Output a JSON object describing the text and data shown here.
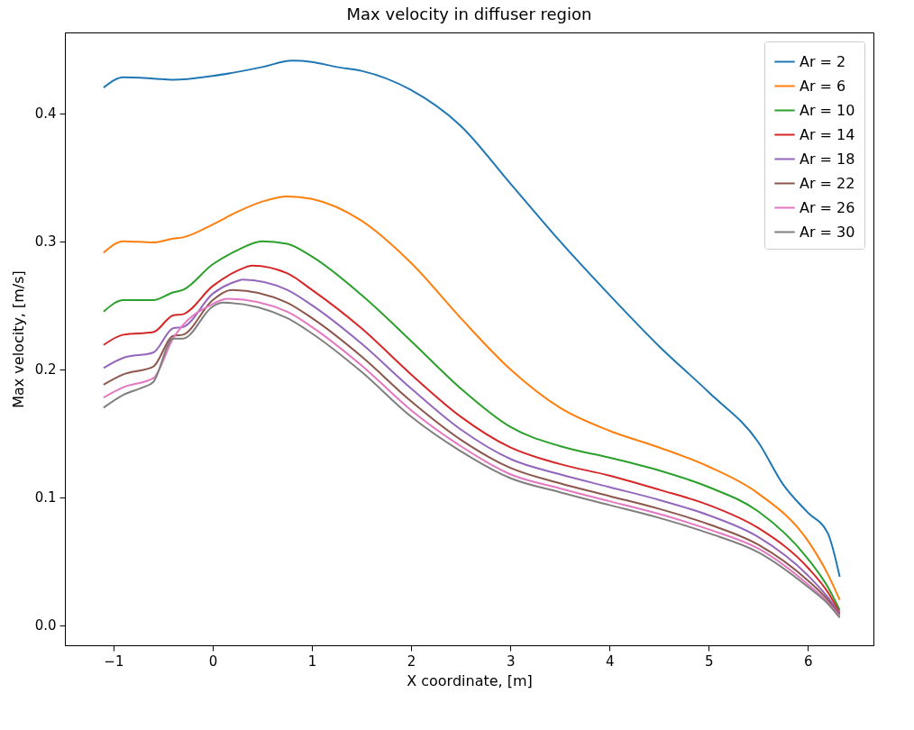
{
  "chart_data": {
    "type": "line",
    "title": "Max velocity in diffuser region",
    "xlabel": "X coordinate, [m]",
    "ylabel": "Max velocity, [m/s]",
    "xlim": [
      -1.49,
      6.66
    ],
    "ylim": [
      -0.0155,
      0.463
    ],
    "xticks": [
      -1,
      0,
      1,
      2,
      3,
      4,
      5,
      6
    ],
    "yticks": [
      {
        "value": 0,
        "label": "0.0"
      },
      {
        "value": 0.1,
        "label": "0.1"
      },
      {
        "value": 0.2,
        "label": "0.2"
      },
      {
        "value": 0.3,
        "label": "0.3"
      },
      {
        "value": 0.4,
        "label": "0.4"
      }
    ],
    "grid": false,
    "legend": "top right",
    "line_style": "solid",
    "marker": "none",
    "series": [
      {
        "name": "Ar = 2",
        "color": "#1f77b4",
        "x": [
          -1.1,
          -0.9,
          -0.6,
          -0.4,
          0,
          0.5,
          0.8,
          1,
          1.25,
          1.5,
          2,
          2.5,
          3,
          3.5,
          4,
          4.5,
          5,
          5.5,
          5.75,
          6,
          6.2,
          6.32
        ],
        "values": [
          0.42,
          0.428,
          0.427,
          0.426,
          0.429,
          0.436,
          0.441,
          0.44,
          0.436,
          0.433,
          0.418,
          0.39,
          0.345,
          0.3,
          0.258,
          0.218,
          0.182,
          0.143,
          0.11,
          0.088,
          0.072,
          0.038
        ]
      },
      {
        "name": "Ar = 6",
        "color": "#ff7f0e",
        "x": [
          -1.1,
          -0.9,
          -0.6,
          -0.4,
          -0.3,
          0,
          0.25,
          0.5,
          0.75,
          1,
          1.5,
          2,
          2.5,
          3,
          3.5,
          4,
          4.5,
          5,
          5.5,
          6,
          6.2,
          6.32
        ],
        "values": [
          0.291,
          0.3,
          0.299,
          0.302,
          0.303,
          0.313,
          0.323,
          0.331,
          0.335,
          0.333,
          0.316,
          0.283,
          0.24,
          0.2,
          0.17,
          0.152,
          0.139,
          0.124,
          0.103,
          0.066,
          0.04,
          0.02
        ]
      },
      {
        "name": "Ar = 10",
        "color": "#2ca02c",
        "x": [
          -1.1,
          -0.9,
          -0.6,
          -0.4,
          -0.3,
          0,
          0.25,
          0.5,
          0.75,
          1,
          1.5,
          2,
          2.5,
          3,
          3.5,
          4,
          4.5,
          5,
          5.5,
          6,
          6.2,
          6.32
        ],
        "values": [
          0.245,
          0.254,
          0.254,
          0.26,
          0.262,
          0.282,
          0.293,
          0.3,
          0.298,
          0.288,
          0.258,
          0.222,
          0.185,
          0.155,
          0.14,
          0.131,
          0.121,
          0.108,
          0.089,
          0.052,
          0.03,
          0.012
        ]
      },
      {
        "name": "Ar = 14",
        "color": "#d62728",
        "x": [
          -1.1,
          -0.9,
          -0.6,
          -0.4,
          -0.3,
          0,
          0.25,
          0.4,
          0.75,
          1,
          1.5,
          2,
          2.5,
          3,
          3.5,
          4,
          4.5,
          5,
          5.5,
          6,
          6.2,
          6.32
        ],
        "values": [
          0.219,
          0.227,
          0.229,
          0.242,
          0.243,
          0.265,
          0.277,
          0.281,
          0.275,
          0.262,
          0.232,
          0.196,
          0.163,
          0.139,
          0.126,
          0.117,
          0.106,
          0.094,
          0.076,
          0.045,
          0.026,
          0.01
        ]
      },
      {
        "name": "Ar = 18",
        "color": "#9467bd",
        "x": [
          -1.1,
          -0.9,
          -0.6,
          -0.4,
          -0.3,
          0,
          0.25,
          0.3,
          0.75,
          1,
          1.5,
          2,
          2.5,
          3,
          3.5,
          4,
          4.5,
          5,
          5.5,
          6,
          6.2,
          6.32
        ],
        "values": [
          0.201,
          0.209,
          0.213,
          0.232,
          0.233,
          0.259,
          0.269,
          0.27,
          0.262,
          0.25,
          0.22,
          0.185,
          0.153,
          0.13,
          0.118,
          0.108,
          0.098,
          0.086,
          0.069,
          0.039,
          0.022,
          0.009
        ]
      },
      {
        "name": "Ar = 22",
        "color": "#8c564b",
        "x": [
          -1.1,
          -0.9,
          -0.6,
          -0.4,
          -0.3,
          0,
          0.2,
          0.75,
          1,
          1.5,
          2,
          2.5,
          3,
          3.5,
          4,
          4.5,
          5,
          5.5,
          6,
          6.2,
          6.32
        ],
        "values": [
          0.188,
          0.196,
          0.202,
          0.226,
          0.227,
          0.254,
          0.262,
          0.252,
          0.24,
          0.21,
          0.175,
          0.145,
          0.123,
          0.111,
          0.101,
          0.091,
          0.079,
          0.063,
          0.035,
          0.02,
          0.008
        ]
      },
      {
        "name": "Ar = 26",
        "color": "#e377c2",
        "x": [
          -1.1,
          -0.9,
          -0.6,
          -0.4,
          0,
          0.15,
          0.75,
          1,
          1.5,
          2,
          2.5,
          3,
          3.5,
          4,
          4.5,
          5,
          5.5,
          6,
          6.2,
          6.32
        ],
        "values": [
          0.178,
          0.186,
          0.193,
          0.224,
          0.251,
          0.255,
          0.245,
          0.233,
          0.203,
          0.168,
          0.14,
          0.118,
          0.107,
          0.097,
          0.087,
          0.075,
          0.06,
          0.032,
          0.018,
          0.007
        ]
      },
      {
        "name": "Ar = 30",
        "color": "#7f7f7f",
        "x": [
          -1.1,
          -0.9,
          -0.7,
          -0.6,
          -0.4,
          -0.3,
          0,
          0.1,
          0.75,
          1,
          1.5,
          2,
          2.5,
          3,
          3.5,
          4,
          4.5,
          5,
          5.5,
          6,
          6.2,
          6.32
        ],
        "values": [
          0.17,
          0.18,
          0.186,
          0.19,
          0.224,
          0.224,
          0.249,
          0.252,
          0.24,
          0.228,
          0.198,
          0.163,
          0.136,
          0.115,
          0.104,
          0.094,
          0.084,
          0.072,
          0.057,
          0.03,
          0.017,
          0.006
        ]
      }
    ]
  }
}
